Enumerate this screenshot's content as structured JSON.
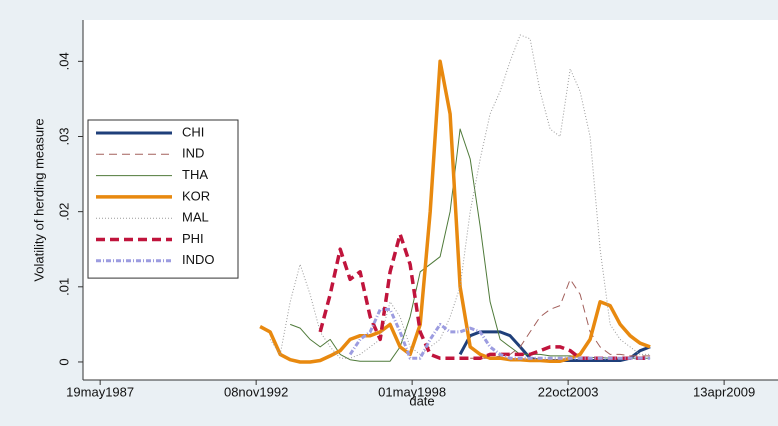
{
  "chart_data": {
    "type": "line",
    "y_label": "Volatility of herding measure",
    "x_label": "date",
    "x": [
      12051,
      12179,
      12308,
      12436,
      12564,
      12692,
      12821,
      12949,
      13077,
      13205,
      13333,
      13462,
      13590,
      13718,
      13846,
      13974,
      14103,
      14231,
      14359,
      14487,
      14615,
      14744,
      14872,
      15000,
      15128,
      15256,
      15385,
      15513,
      15641,
      15769,
      15897,
      16026,
      16154,
      16282,
      16410,
      16538,
      16667,
      16795,
      16923,
      17051
    ],
    "series": [
      {
        "name": "CHI",
        "color": "#1f3f7a",
        "values": [
          null,
          null,
          null,
          null,
          null,
          null,
          null,
          null,
          null,
          null,
          null,
          null,
          null,
          null,
          null,
          null,
          null,
          null,
          null,
          null,
          0.001,
          0.0035,
          0.004,
          0.004,
          0.004,
          0.0035,
          0.002,
          0.0005,
          0.0002,
          0.0002,
          0.0002,
          0.0002,
          0.0002,
          0.0002,
          0.0002,
          0.0002,
          0.0002,
          0.0005,
          0.0015,
          0.002
        ]
      },
      {
        "name": "IND",
        "color": "#a3605c",
        "values": [
          null,
          null,
          null,
          null,
          null,
          null,
          null,
          null,
          null,
          null,
          null,
          null,
          null,
          null,
          null,
          null,
          null,
          null,
          null,
          null,
          null,
          0.0005,
          0.0005,
          0.0005,
          0.0008,
          0.001,
          0.002,
          0.004,
          0.006,
          0.007,
          0.0075,
          0.011,
          0.009,
          0.004,
          0.002,
          0.001,
          0.001,
          0.0008,
          0.0008,
          0.0008
        ]
      },
      {
        "name": "THA",
        "color": "#4f7a3a",
        "values": [
          null,
          null,
          null,
          0.005,
          0.0045,
          0.003,
          0.002,
          0.003,
          0.001,
          0.0003,
          0.0001,
          0.0001,
          0.0001,
          0.0001,
          0.002,
          0.006,
          0.012,
          0.013,
          0.014,
          0.02,
          0.031,
          0.027,
          0.018,
          0.008,
          0.003,
          0.002,
          0.001,
          0.001,
          0.001,
          0.0008,
          0.0008,
          0.0008,
          0.0006,
          0.0006,
          0.0006,
          0.0005,
          0.0005,
          0.0005,
          0.0005,
          0.0005
        ]
      },
      {
        "name": "KOR",
        "color": "#e8890f",
        "values": [
          0.0047,
          0.004,
          0.001,
          0.0003,
          0,
          0,
          0.0002,
          0.0008,
          0.0015,
          0.003,
          0.0035,
          0.0035,
          0.004,
          0.005,
          0.002,
          0.001,
          0.005,
          0.02,
          0.04,
          0.033,
          0.01,
          0.002,
          0.001,
          0.0005,
          0.0005,
          0.0003,
          0.0003,
          0.0002,
          0.0002,
          0.0001,
          0.0001,
          0.0005,
          0.001,
          0.003,
          0.008,
          0.0075,
          0.005,
          0.0035,
          0.0025,
          0.002
        ]
      },
      {
        "name": "MAL",
        "color": "#9a9a9a",
        "values": [
          null,
          0.003,
          0.001,
          0.008,
          0.013,
          0.009,
          0.004,
          0.002,
          0.0005,
          0.0005,
          0.001,
          0.002,
          0.003,
          0.008,
          0.006,
          0.002,
          0.001,
          0.002,
          0.003,
          0.006,
          0.01,
          0.02,
          0.027,
          0.033,
          0.036,
          0.04,
          0.0435,
          0.043,
          0.036,
          0.031,
          0.03,
          0.039,
          0.036,
          0.03,
          0.015,
          0.005,
          0.003,
          0.002,
          0.001,
          0.001
        ]
      },
      {
        "name": "PHI",
        "color": "#c0143c",
        "values": [
          null,
          null,
          null,
          null,
          null,
          null,
          0.004,
          0.009,
          0.015,
          0.011,
          0.012,
          0.006,
          0.003,
          0.012,
          0.017,
          0.013,
          0.004,
          0.001,
          0.0005,
          0.0005,
          0.0005,
          0.0005,
          0.0005,
          0.001,
          0.001,
          0.001,
          0.001,
          0.001,
          0.0015,
          0.002,
          0.002,
          0.0015,
          0.0005,
          0.0005,
          0.0005,
          0.0005,
          0.0005,
          0.0005,
          0.0005,
          0.0005
        ]
      },
      {
        "name": "INDO",
        "color": "#9c9ce0",
        "values": [
          null,
          null,
          null,
          null,
          null,
          null,
          null,
          null,
          null,
          0.001,
          0.003,
          0.004,
          0.007,
          0.007,
          0.004,
          0.0005,
          0.0005,
          0.003,
          0.005,
          0.004,
          0.004,
          0.0045,
          0.004,
          0.002,
          0.001,
          0.0005,
          0.0005,
          0.0005,
          0.0005,
          0.0005,
          0.0005,
          0.0005,
          0.0005,
          0.0005,
          0.0005,
          0.0005,
          0.0005,
          0.0005,
          0.0005,
          0.0005
        ]
      }
    ],
    "xlim": [
      9780,
      18460
    ],
    "xticks": [
      {
        "value": 10000,
        "label": "19may1987"
      },
      {
        "value": 12000,
        "label": "08nov1992"
      },
      {
        "value": 14000,
        "label": "01may1998"
      },
      {
        "value": 16000,
        "label": "22oct2003"
      },
      {
        "value": 18000,
        "label": "13apr2009"
      }
    ],
    "ylim": [
      -0.0024,
      0.0455
    ],
    "yticks": [
      0,
      {
        "value": 0.01,
        "label": ".01"
      },
      {
        "value": 0.02,
        "label": ".02"
      },
      {
        "value": 0.03,
        "label": ".03"
      },
      {
        "value": 0.04,
        "label": ".04"
      }
    ],
    "legend": "left"
  }
}
